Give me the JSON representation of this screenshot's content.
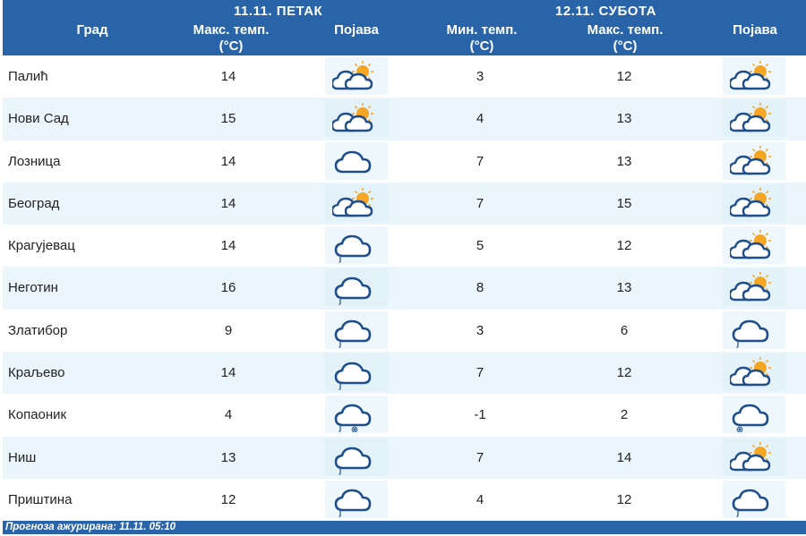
{
  "header": {
    "day1": "11.11. ПЕТАК",
    "day2": "12.11. СУБОТА",
    "col_city": "Град",
    "col_max1": "Макс. темп.",
    "col_unit1": "(°C)",
    "col_icon1": "Појава",
    "col_min2": "Мин. темп.",
    "col_unit2": "(°C)",
    "col_max2": "Макс. темп.",
    "col_unit3": "(°C)",
    "col_icon2": "Појава"
  },
  "rows": [
    {
      "city": "Палић",
      "max1": "14",
      "icon1": "partly-sunny-icon",
      "min2": "3",
      "max2": "12",
      "icon2": "partly-sunny-icon"
    },
    {
      "city": "Нови Сад",
      "max1": "15",
      "icon1": "partly-sunny-icon",
      "min2": "4",
      "max2": "13",
      "icon2": "partly-sunny-icon"
    },
    {
      "city": "Лозница",
      "max1": "14",
      "icon1": "cloudy-icon",
      "min2": "7",
      "max2": "13",
      "icon2": "partly-sunny-icon"
    },
    {
      "city": "Београд",
      "max1": "14",
      "icon1": "partly-sunny-icon",
      "min2": "7",
      "max2": "15",
      "icon2": "partly-sunny-icon"
    },
    {
      "city": "Крагујевац",
      "max1": "14",
      "icon1": "rain-icon",
      "min2": "5",
      "max2": "12",
      "icon2": "partly-sunny-icon"
    },
    {
      "city": "Неготин",
      "max1": "16",
      "icon1": "rain-icon",
      "min2": "8",
      "max2": "13",
      "icon2": "partly-sunny-icon"
    },
    {
      "city": "Златибор",
      "max1": "9",
      "icon1": "rain-icon",
      "min2": "3",
      "max2": "6",
      "icon2": "rain-icon"
    },
    {
      "city": "Краљево",
      "max1": "14",
      "icon1": "rain-icon",
      "min2": "7",
      "max2": "12",
      "icon2": "partly-sunny-icon"
    },
    {
      "city": "Копаоник",
      "max1": "4",
      "icon1": "rain-snow-icon",
      "min2": "-1",
      "max2": "2",
      "icon2": "snow-icon"
    },
    {
      "city": "Ниш",
      "max1": "13",
      "icon1": "rain-icon",
      "min2": "7",
      "max2": "14",
      "icon2": "partly-sunny-icon"
    },
    {
      "city": "Приштина",
      "max1": "12",
      "icon1": "rain-icon",
      "min2": "4",
      "max2": "12",
      "icon2": "rain-icon"
    }
  ],
  "footer": {
    "text": "Прогноза ажурирана:  11.11. 05:10"
  },
  "colors": {
    "header_bg": "#2a64a8",
    "row_alt_bg": "#eaf6fb",
    "cloud_stroke": "#1e4f8c",
    "sun": "#f5a623"
  }
}
